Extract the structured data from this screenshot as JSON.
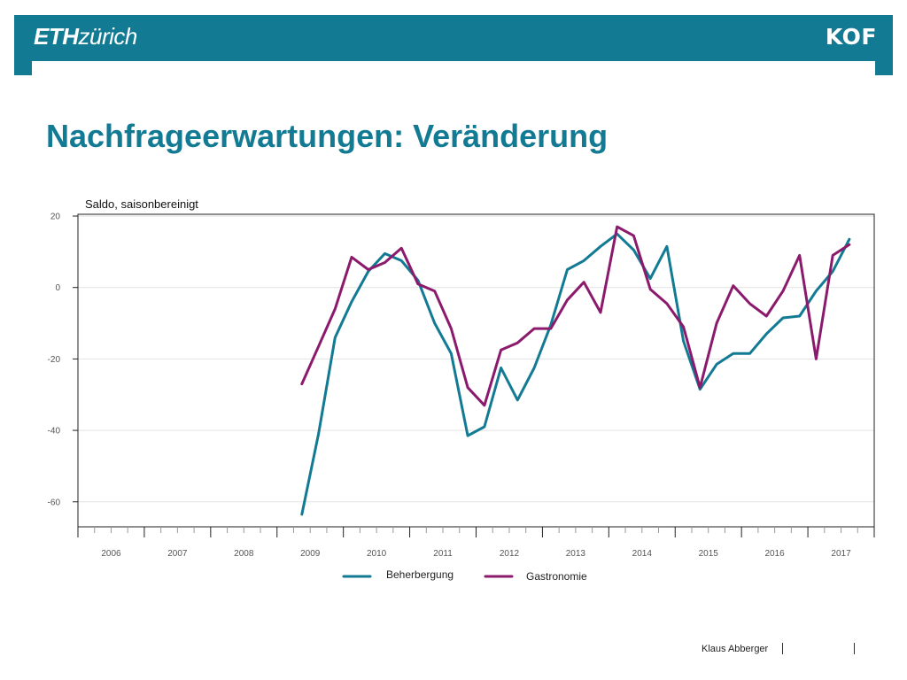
{
  "header": {
    "logo_eth_bold": "ETH",
    "logo_eth_italic": "zürich",
    "logo_kof": "KOF",
    "brand_color": "#127a93"
  },
  "page": {
    "title": "Nachfrageerwartungen: Veränderung"
  },
  "footer": {
    "author": "Klaus Abberger"
  },
  "chart_data": {
    "type": "line",
    "ylabel": "Saldo, saisonbereinigt",
    "ylim": [
      -67,
      20.5
    ],
    "yticks": [
      20,
      0,
      -20,
      -40,
      -60
    ],
    "year_labels": [
      "2006",
      "2007",
      "2008",
      "2009",
      "2010",
      "2011",
      "2012",
      "2013",
      "2014",
      "2015",
      "2016",
      "2017"
    ],
    "x_start_year": 2006,
    "quarters_per_year": 4,
    "grid": true,
    "legend_position": "bottom",
    "series": [
      {
        "name": "Beherbergung",
        "color": "#127a93",
        "start_quarter_index": 13,
        "values": [
          -63.5,
          -41,
          -14,
          -4,
          4.5,
          9.5,
          7.5,
          2,
          -10,
          -18.5,
          -41.5,
          -39,
          -22.5,
          -31.5,
          -22.5,
          -10.5,
          5,
          7.5,
          11.5,
          15,
          10.5,
          2.5,
          11.5,
          -15,
          -28.5,
          -21.5,
          -18.5,
          -18.5,
          -13,
          -8.5,
          -8,
          -1,
          4.5,
          13.5
        ]
      },
      {
        "name": "Gastronomie",
        "color": "#8b1a6d",
        "start_quarter_index": 13,
        "values": [
          -27,
          -16.5,
          -6,
          8.5,
          5,
          7,
          11,
          1,
          -1,
          -11.5,
          -28,
          -33,
          -17.5,
          -15.5,
          -11.5,
          -11.5,
          -3.5,
          1.5,
          -7,
          17,
          14.5,
          -0.5,
          -4.5,
          -11,
          -28,
          -10,
          0.5,
          -4.5,
          -8,
          -1,
          9,
          -20,
          9,
          12
        ]
      }
    ]
  }
}
